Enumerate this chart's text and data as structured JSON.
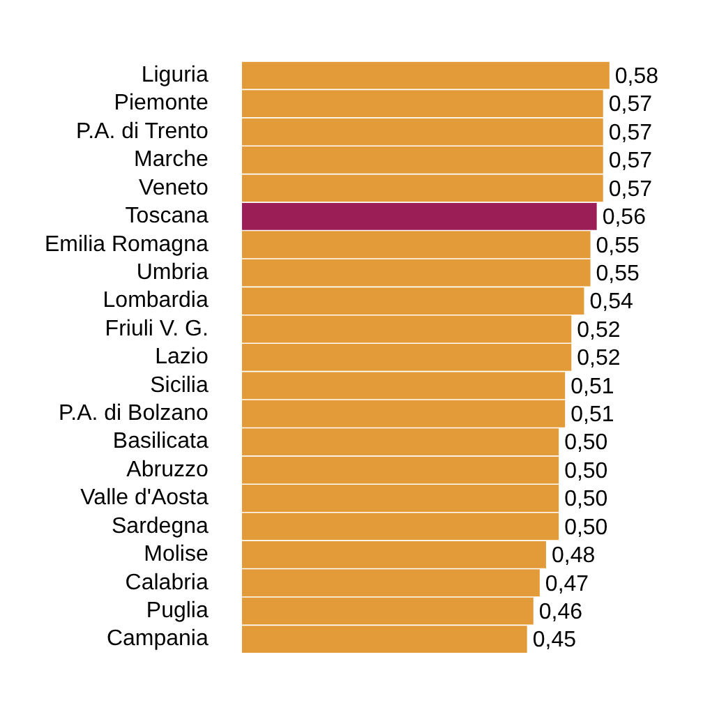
{
  "chart_data": {
    "type": "bar",
    "orientation": "horizontal",
    "categories": [
      "Liguria",
      "Piemonte",
      "P.A. di Trento",
      "Marche",
      "Veneto",
      "Toscana",
      "Emilia Romagna",
      "Umbria",
      "Lombardia",
      "Friuli V. G.",
      "Lazio",
      "Sicilia",
      "P.A. di Bolzano",
      "Basilicata",
      "Abruzzo",
      "Valle d'Aosta",
      "Sardegna",
      "Molise",
      "Calabria",
      "Puglia",
      "Campania"
    ],
    "values": [
      0.58,
      0.57,
      0.57,
      0.57,
      0.57,
      0.56,
      0.55,
      0.55,
      0.54,
      0.52,
      0.52,
      0.51,
      0.51,
      0.5,
      0.5,
      0.5,
      0.5,
      0.48,
      0.47,
      0.46,
      0.45
    ],
    "colors": [
      "#e39b39",
      "#e39b39",
      "#e39b39",
      "#e39b39",
      "#e39b39",
      "#9b1f56",
      "#e39b39",
      "#e39b39",
      "#e39b39",
      "#e39b39",
      "#e39b39",
      "#e39b39",
      "#e39b39",
      "#e39b39",
      "#e39b39",
      "#e39b39",
      "#e39b39",
      "#e39b39",
      "#e39b39",
      "#e39b39",
      "#e39b39"
    ],
    "value_labels": [
      "0,58",
      "0,57",
      "0,57",
      "0,57",
      "0,57",
      "0,56",
      "0,55",
      "0,55",
      "0,54",
      "0,52",
      "0,52",
      "0,51",
      "0,51",
      "0,50",
      "0,50",
      "0,50",
      "0,50",
      "0,48",
      "0,47",
      "0,46",
      "0,45"
    ],
    "grid": false,
    "legend": false
  }
}
